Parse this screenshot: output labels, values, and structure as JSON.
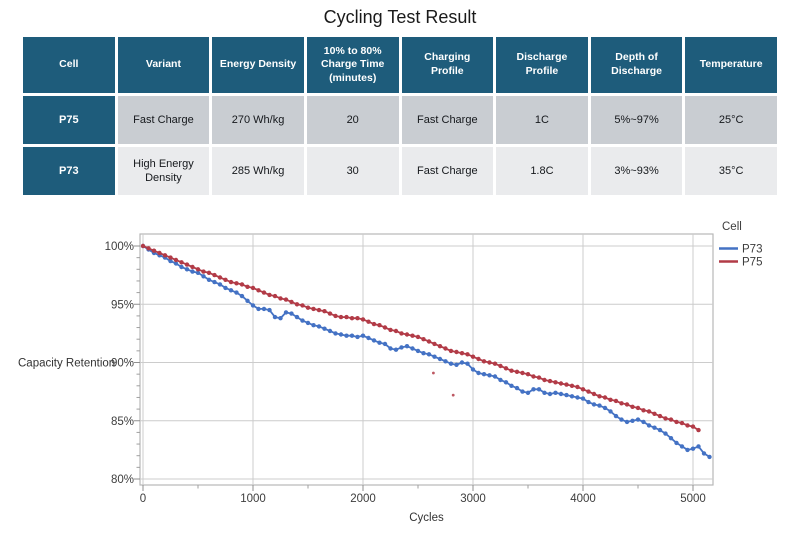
{
  "page_title": "Cycling Test Result",
  "table": {
    "headers": [
      "Cell",
      "Variant",
      "Energy Density",
      "10% to 80% Charge Time (minutes)",
      "Charging Profile",
      "Discharge Profile",
      "Depth of Discharge",
      "Temperature"
    ],
    "rows": [
      {
        "cells": [
          "P75",
          "Fast Charge",
          "270 Wh/kg",
          "20",
          "Fast Charge",
          "1C",
          "5%~97%",
          "25°C"
        ]
      },
      {
        "cells": [
          "P73",
          "High Energy Density",
          "285 Wh/kg",
          "30",
          "Fast Charge",
          "1.8C",
          "3%~93%",
          "35°C"
        ]
      }
    ],
    "style": {
      "header_bg": "#1E5C7B",
      "header_text": "#FFFFFF",
      "row1_bg": "#C9CDD2",
      "row2_bg": "#EAEBED"
    }
  },
  "chart_data": {
    "type": "line",
    "title": "",
    "xlabel": "Cycles",
    "ylabel": "Capacity Retention",
    "xlim": [
      -30,
      5520
    ],
    "ylim": [
      79.5,
      101.1
    ],
    "grid": true,
    "x_ticks": [
      0,
      1000,
      2000,
      3000,
      4000,
      5000
    ],
    "x_minor_ticks": [
      500,
      1500,
      2500,
      3500,
      4500
    ],
    "y_ticks": [
      100,
      95,
      90,
      85,
      80
    ],
    "y_tick_labels": [
      "100%",
      "95%",
      "90%",
      "85%",
      "80%"
    ],
    "legend": {
      "title": "Cell",
      "position": "right",
      "entries": [
        {
          "label": "P73",
          "color": "#4472C4"
        },
        {
          "label": "P75",
          "color": "#B23B47"
        }
      ]
    },
    "series": [
      {
        "name": "P73",
        "color": "#4472C4",
        "x_start": 0,
        "x_step": 50,
        "y": [
          100.0,
          99.7,
          99.4,
          99.2,
          99.0,
          98.7,
          98.5,
          98.2,
          98.0,
          97.8,
          97.7,
          97.4,
          97.1,
          96.9,
          96.7,
          96.4,
          96.2,
          96.0,
          95.7,
          95.3,
          94.9,
          94.6,
          94.6,
          94.5,
          93.9,
          93.8,
          94.3,
          94.2,
          93.9,
          93.6,
          93.4,
          93.2,
          93.1,
          92.9,
          92.7,
          92.5,
          92.4,
          92.3,
          92.3,
          92.2,
          92.3,
          92.1,
          91.9,
          91.7,
          91.6,
          91.2,
          91.1,
          91.3,
          91.4,
          91.2,
          91.0,
          90.8,
          90.7,
          90.5,
          90.3,
          90.1,
          89.9,
          89.8,
          90.0,
          89.9,
          89.4,
          89.1,
          89.0,
          88.9,
          88.8,
          88.5,
          88.3,
          88.0,
          87.8,
          87.5,
          87.4,
          87.7,
          87.7,
          87.4,
          87.3,
          87.4,
          87.3,
          87.2,
          87.1,
          87.0,
          86.9,
          86.6,
          86.4,
          86.3,
          86.1,
          85.8,
          85.4,
          85.1,
          84.9,
          85.0,
          85.1,
          84.9,
          84.6,
          84.4,
          84.2,
          83.9,
          83.5,
          83.1,
          82.8,
          82.5,
          82.6,
          82.8,
          82.2,
          81.9
        ]
      },
      {
        "name": "P75",
        "color": "#B23B47",
        "x_start": 0,
        "x_step": 50,
        "y": [
          100.0,
          99.8,
          99.6,
          99.4,
          99.2,
          99.0,
          98.8,
          98.6,
          98.4,
          98.2,
          98.0,
          97.8,
          97.7,
          97.5,
          97.3,
          97.1,
          96.9,
          96.8,
          96.7,
          96.5,
          96.4,
          96.2,
          96.0,
          95.8,
          95.7,
          95.5,
          95.4,
          95.2,
          95.0,
          94.9,
          94.7,
          94.6,
          94.5,
          94.4,
          94.2,
          94.0,
          93.9,
          93.9,
          93.8,
          93.8,
          93.7,
          93.5,
          93.3,
          93.2,
          93.0,
          92.8,
          92.7,
          92.5,
          92.4,
          92.3,
          92.2,
          92.0,
          91.8,
          91.6,
          91.4,
          91.2,
          91.0,
          90.9,
          90.8,
          90.7,
          90.5,
          90.3,
          90.1,
          90.0,
          89.9,
          89.7,
          89.5,
          89.3,
          89.2,
          89.1,
          89.0,
          88.8,
          88.7,
          88.5,
          88.4,
          88.3,
          88.2,
          88.1,
          88.0,
          87.9,
          87.7,
          87.5,
          87.3,
          87.1,
          87.0,
          86.8,
          86.7,
          86.5,
          86.4,
          86.2,
          86.1,
          85.9,
          85.8,
          85.6,
          85.4,
          85.2,
          85.1,
          84.9,
          84.8,
          84.6,
          84.5,
          84.2
        ]
      }
    ],
    "stray_points": [
      {
        "series": "P75",
        "x": 2640,
        "y": 89.1
      },
      {
        "series": "P75",
        "x": 2820,
        "y": 87.2
      }
    ]
  }
}
